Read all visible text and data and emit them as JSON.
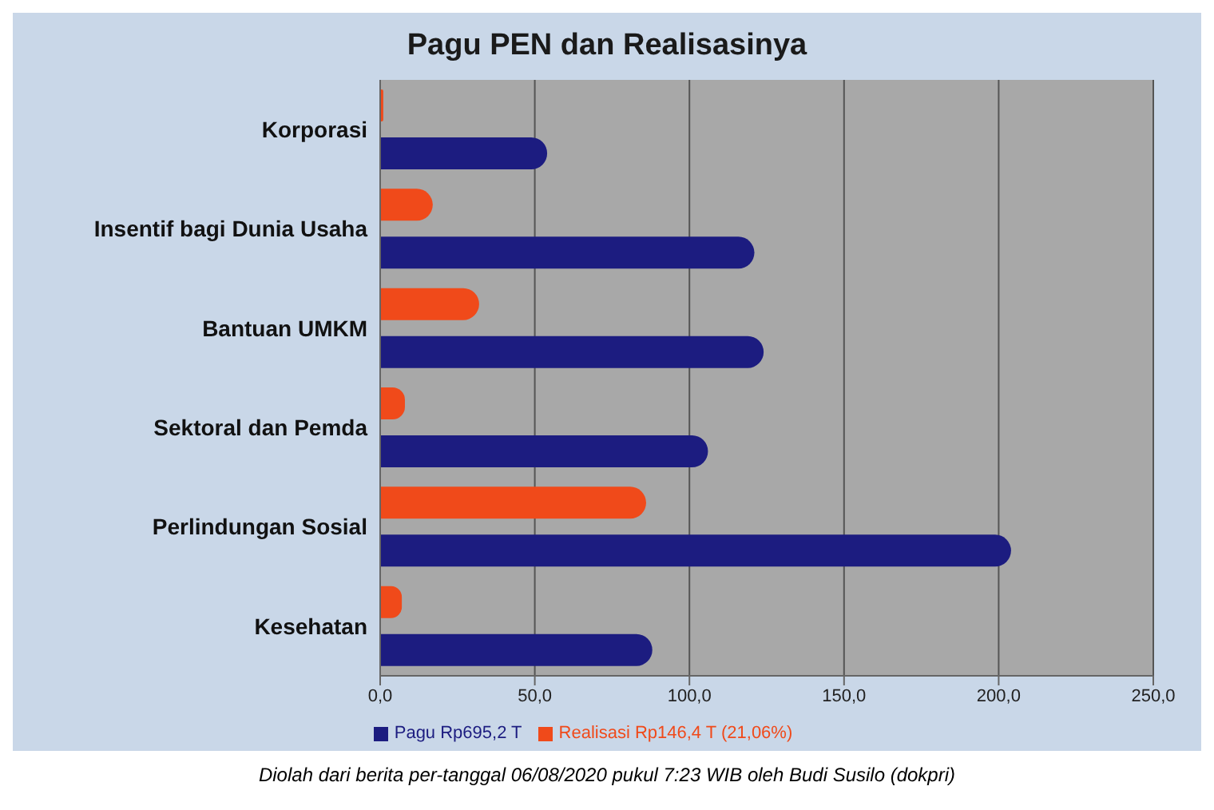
{
  "chart_data": {
    "type": "bar",
    "orientation": "horizontal",
    "title": "Pagu PEN dan Realisasinya",
    "categories": [
      "Korporasi",
      "Insentif bagi Dunia Usaha",
      "Bantuan UMKM",
      "Sektoral dan Pemda",
      "Perlindungan Sosial",
      "Kesehatan"
    ],
    "series": [
      {
        "name": "Realisasi Rp146,4 T (21,06%)",
        "color": "#f04a1a",
        "values": [
          1,
          17,
          32,
          8,
          86,
          7
        ]
      },
      {
        "name": "Pagu Rp695,2 T",
        "color": "#1c1c80",
        "values": [
          54,
          121,
          124,
          106,
          204,
          88
        ]
      }
    ],
    "xlim": [
      0,
      250
    ],
    "xticks": [
      {
        "value": 0,
        "label": "0,0"
      },
      {
        "value": 50,
        "label": "50,0"
      },
      {
        "value": 100,
        "label": "100,0"
      },
      {
        "value": 150,
        "label": "150,0"
      },
      {
        "value": 200,
        "label": "200,0"
      },
      {
        "value": 250,
        "label": "250,0"
      }
    ],
    "grid": "x",
    "legend": "bottom",
    "annotations": [
      "Diolah dari berita per-tanggal 06/08/2020 pukul 7:23 WIB oleh Budi Susilo (dokpri)"
    ]
  }
}
